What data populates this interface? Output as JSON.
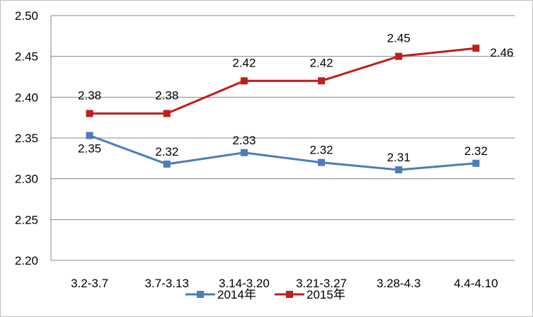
{
  "chart_data": {
    "type": "line",
    "categories": [
      "3.2-3.7",
      "3.7-3.13",
      "3.14-3.20",
      "3.21-3.27",
      "3.28-4.3",
      "4.4-4.10"
    ],
    "series": [
      {
        "name": "2014年",
        "values": [
          2.353,
          2.318,
          2.332,
          2.32,
          2.311,
          2.319
        ],
        "labels": [
          "2.35",
          "2.32",
          "2.33",
          "2.32",
          "2.31",
          "2.32"
        ],
        "label_position": "below",
        "color": "#4a7ebb"
      },
      {
        "name": "2015年",
        "values": [
          2.38,
          2.38,
          2.42,
          2.42,
          2.45,
          2.46
        ],
        "labels": [
          "2.38",
          "2.38",
          "2.42",
          "2.42",
          "2.45",
          "2.46"
        ],
        "label_position": "above",
        "color": "#be1e1e"
      }
    ],
    "ylim": [
      2.2,
      2.5
    ],
    "yticks": [
      "2.20",
      "2.25",
      "2.30",
      "2.35",
      "2.40",
      "2.45",
      "2.50"
    ],
    "grid": true,
    "legend_position": "bottom"
  }
}
